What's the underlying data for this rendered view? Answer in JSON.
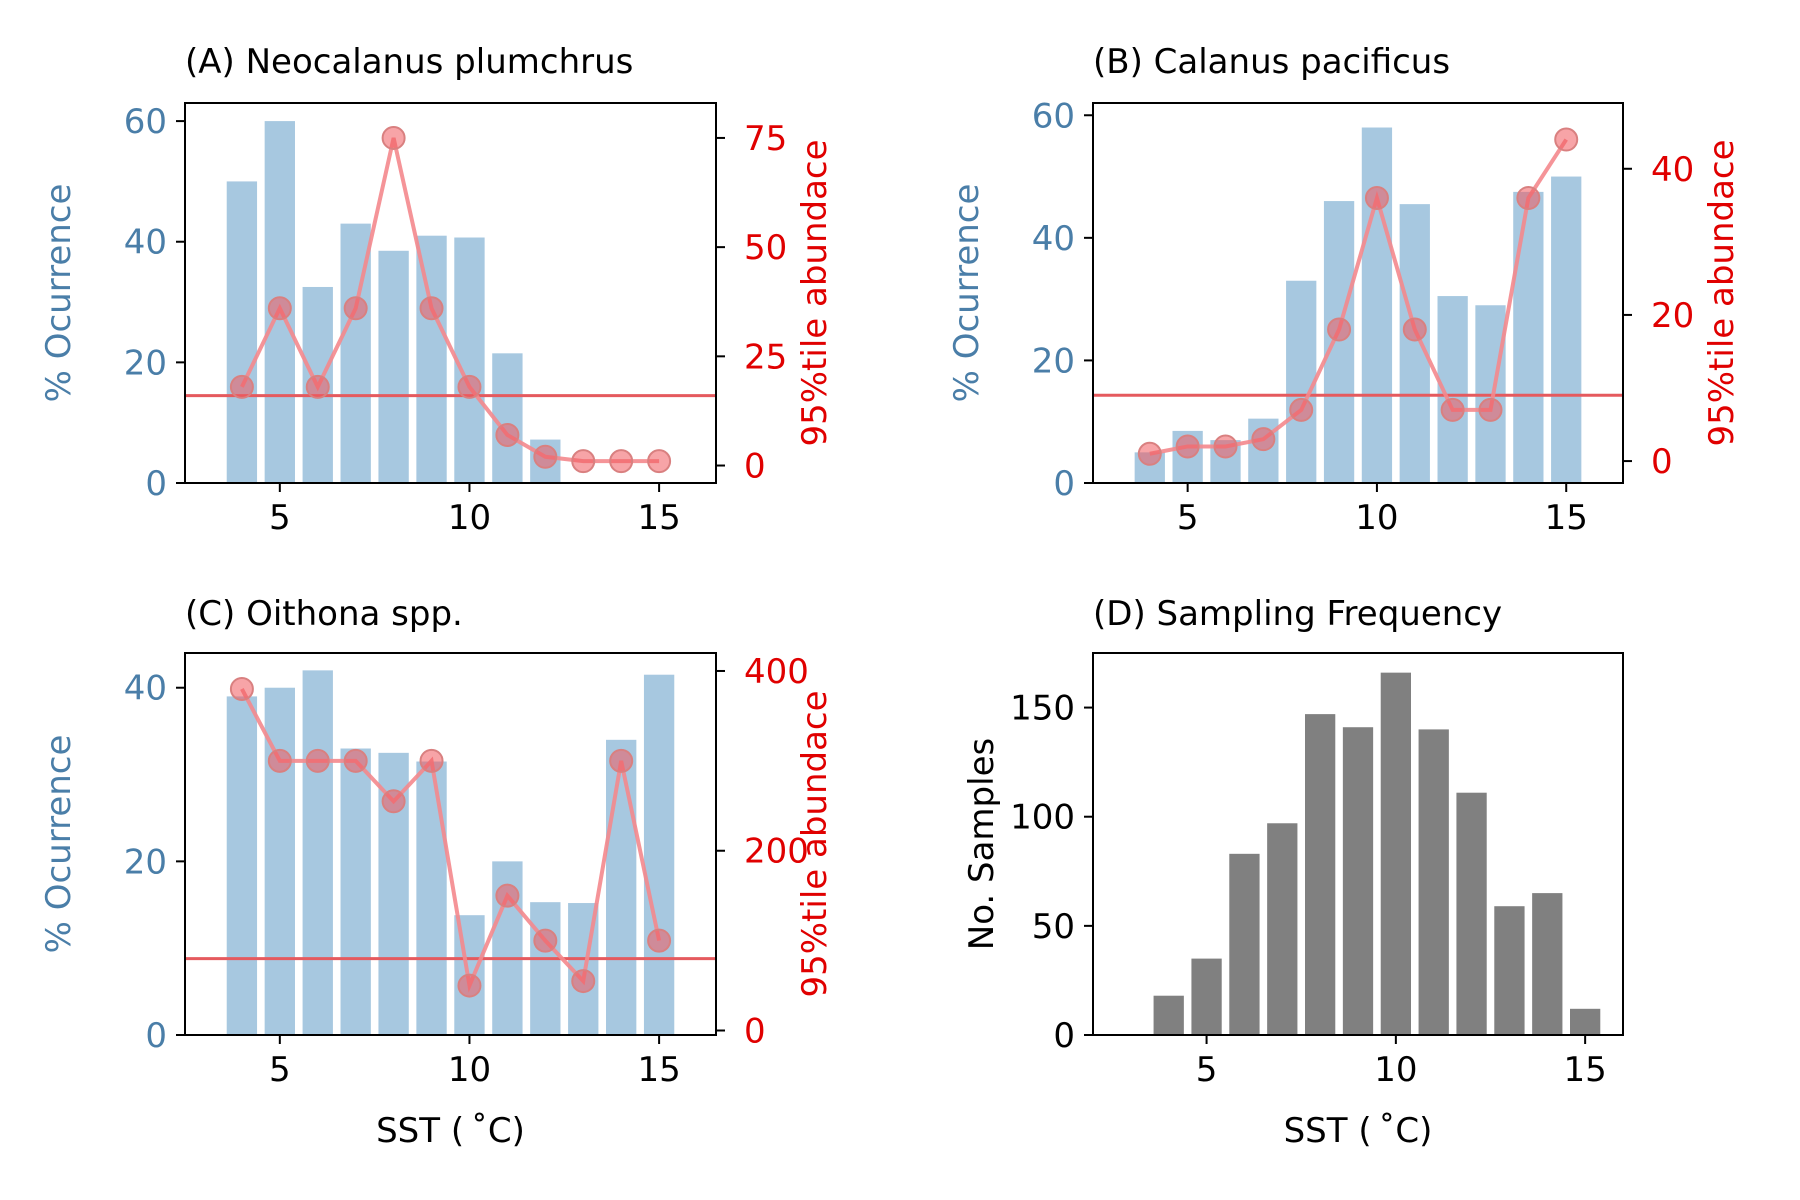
{
  "colors": {
    "occurrence_bar": "#a7c8e0",
    "left_axis_text": "#4a7ea8",
    "right_axis_text": "#e00000",
    "abundance_line": "#f4888d",
    "abundance_marker_edge": "#d98080",
    "threshold_line": "#e55a5e",
    "samples_bar": "#808080",
    "axis_black": "#000000"
  },
  "chart_data": [
    {
      "panel": "A",
      "type": "bar+line",
      "title": "(A) Neocalanus plumchrus",
      "xlabel": "",
      "ylabel": "% Ocurrence",
      "y2label": "95%tile abundace",
      "xlim": [
        2.5,
        16.5
      ],
      "ylim": [
        0,
        63
      ],
      "y2lim": [
        -4,
        83
      ],
      "x_ticks": [
        5,
        10,
        15
      ],
      "y_ticks": [
        0,
        20,
        40,
        60
      ],
      "y2_ticks": [
        0,
        25,
        50,
        75
      ],
      "bar_x": [
        4,
        5,
        6,
        7,
        8,
        9,
        10,
        11,
        12,
        13,
        14,
        15
      ],
      "occurrence": [
        50,
        60,
        32.5,
        43,
        38.5,
        41,
        40.7,
        21.5,
        7.2,
        0,
        0,
        0
      ],
      "abundance": [
        18,
        36,
        18,
        36,
        75,
        36,
        18,
        7,
        2,
        1,
        1,
        1
      ],
      "threshold": 16
    },
    {
      "panel": "B",
      "type": "bar+line",
      "title": "(B) Calanus pacificus",
      "xlabel": "",
      "ylabel": "% Ocurrence",
      "y2label": "95%tile abundace",
      "xlim": [
        2.5,
        16.5
      ],
      "ylim": [
        0,
        62
      ],
      "y2lim": [
        -3,
        49
      ],
      "x_ticks": [
        5,
        10,
        15
      ],
      "y_ticks": [
        0,
        20,
        40,
        60
      ],
      "y2_ticks": [
        0,
        20,
        40
      ],
      "bar_x": [
        4,
        5,
        6,
        7,
        8,
        9,
        10,
        11,
        12,
        13,
        14,
        15
      ],
      "occurrence": [
        5,
        8.5,
        7,
        10.5,
        33,
        46,
        58,
        45.5,
        30.5,
        29,
        47.5,
        50
      ],
      "abundance": [
        1,
        2,
        2,
        3,
        7,
        18,
        36,
        18,
        7,
        7,
        36,
        44
      ],
      "threshold": 9
    },
    {
      "panel": "C",
      "type": "bar+line",
      "title": "(C) Oithona spp.",
      "xlabel": "SST ($^\\circ$C)",
      "xlabel_display": "SST ( ˚C)",
      "ylabel": "% Ocurrence",
      "y2label": "95%tile abundace",
      "xlim": [
        2.5,
        16.5
      ],
      "ylim": [
        0,
        44
      ],
      "y2lim": [
        -5,
        420
      ],
      "x_ticks": [
        5,
        10,
        15
      ],
      "y_ticks": [
        0,
        20,
        40
      ],
      "y2_ticks": [
        0,
        200,
        400
      ],
      "bar_x": [
        4,
        5,
        6,
        7,
        8,
        9,
        10,
        11,
        12,
        13,
        14,
        15
      ],
      "occurrence": [
        39,
        40,
        42,
        33,
        32.5,
        31.5,
        13.8,
        20,
        15.3,
        15.2,
        34,
        41.5
      ],
      "abundance": [
        380,
        300,
        300,
        300,
        255,
        300,
        50,
        150,
        100,
        55,
        300,
        100
      ],
      "threshold": 80
    },
    {
      "panel": "D",
      "type": "bar",
      "title": "(D) Sampling Frequency",
      "xlabel": "SST ($^\\circ$C)",
      "xlabel_display": "SST ( ˚C)",
      "ylabel": "No. Samples",
      "xlim": [
        2,
        16
      ],
      "ylim": [
        0,
        175
      ],
      "x_ticks": [
        5,
        10,
        15
      ],
      "y_ticks": [
        0,
        50,
        100,
        150
      ],
      "bar_x": [
        4,
        5,
        6,
        7,
        8,
        9,
        10,
        11,
        12,
        13,
        14,
        15
      ],
      "samples": [
        18,
        35,
        83,
        97,
        147,
        141,
        166,
        140,
        111,
        59,
        65,
        12
      ]
    }
  ]
}
